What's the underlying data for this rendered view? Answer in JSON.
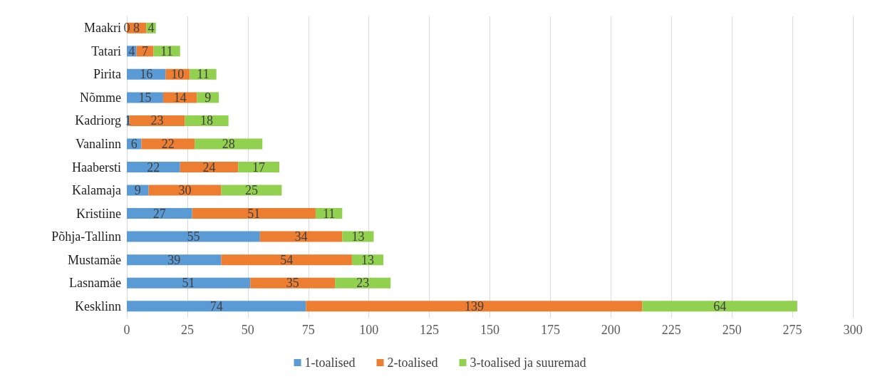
{
  "chart_data": {
    "type": "bar",
    "orientation": "horizontal",
    "stacked": true,
    "data_labels": true,
    "grid": "x",
    "legend": "bottom",
    "categories": [
      "Maakri",
      "Tatari",
      "Pirita",
      "Nõmme",
      "Kadriorg",
      "Vanalinn",
      "Haabersti",
      "Kalamaja",
      "Kristiine",
      "Põhja-Tallinn",
      "Mustamäe",
      "Lasnamäe",
      "Kesklinn"
    ],
    "series": [
      {
        "name": "1-toalised",
        "color": "#5b9bd5",
        "values": [
          0,
          4,
          16,
          15,
          1,
          6,
          22,
          9,
          27,
          55,
          39,
          51,
          74
        ]
      },
      {
        "name": "2-toalised",
        "color": "#ed7d31",
        "values": [
          8,
          7,
          10,
          14,
          23,
          22,
          24,
          30,
          51,
          34,
          54,
          35,
          139
        ]
      },
      {
        "name": "3-toalised ja suuremad",
        "color": "#92d050",
        "values": [
          4,
          11,
          11,
          9,
          18,
          28,
          17,
          25,
          11,
          13,
          13,
          23,
          64
        ]
      }
    ],
    "xlim": [
      0,
      300
    ],
    "xticks": [
      0,
      25,
      50,
      75,
      100,
      125,
      150,
      175,
      200,
      225,
      250,
      275,
      300
    ]
  }
}
